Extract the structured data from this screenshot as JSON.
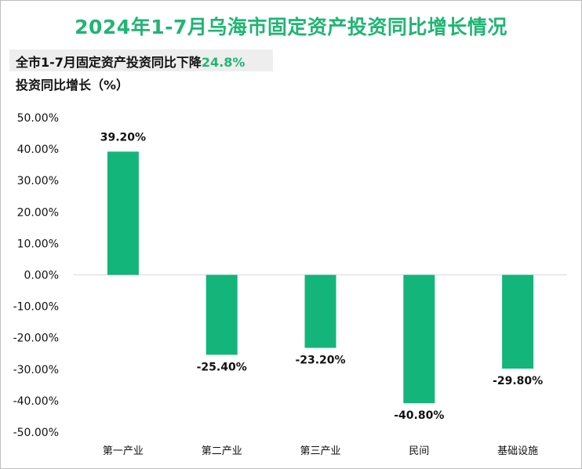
{
  "title": "2024年1-7月乌海市固定资产投资同比增长情况",
  "subtitle_prefix": "全市1-7月固定资产投资同比下降",
  "subtitle_value": "24.8%",
  "colors": {
    "bar": "#13b57b",
    "title": "#20b574",
    "axis": "#d9d9d9"
  },
  "chart_data": {
    "type": "bar",
    "title": "2024年1-7月乌海市固定资产投资同比增长情况",
    "ylabel": "投资同比增长（%）",
    "xlabel": "",
    "categories": [
      "第一产业",
      "第二产业",
      "第三产业",
      "民间",
      "基础设施"
    ],
    "values": [
      39.2,
      -25.4,
      -23.2,
      -40.8,
      -29.8
    ],
    "data_labels": [
      "39.20%",
      "-25.40%",
      "-23.20%",
      "-40.80%",
      "-29.80%"
    ],
    "ylim": [
      -50,
      50
    ],
    "yticks": [
      50,
      40,
      30,
      20,
      10,
      0,
      -10,
      -20,
      -30,
      -40,
      -50
    ],
    "ytick_labels": [
      "50.00%",
      "40.00%",
      "30.00%",
      "20.00%",
      "10.00%",
      "0.00%",
      "-10.00%",
      "-20.00%",
      "-30.00%",
      "-40.00%",
      "-50.00%"
    ],
    "grid": false,
    "legend": "none"
  }
}
